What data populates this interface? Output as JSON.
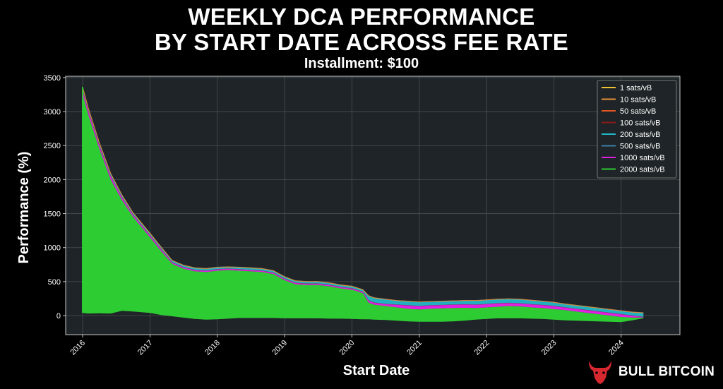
{
  "brand": {
    "name": "BULL BITCOIN",
    "logo_icon": "bull-head-icon",
    "logo_color": "#d7282f"
  },
  "colors": {
    "background": "#000000",
    "plot_background": "#1e2427",
    "grid": "#4a4f52",
    "axis": "#c8c8c8",
    "text": "#ffffff"
  },
  "chart_data": {
    "type": "area",
    "title_lines": [
      "WEEKLY DCA PERFORMANCE",
      "BY START DATE ACROSS FEE RATE"
    ],
    "subtitle": "Installment: $100",
    "xlabel": "Start Date",
    "ylabel": "Performance (%)",
    "xlim": [
      "2015-10-01",
      "2024-11-15"
    ],
    "ylim": [
      -280,
      3520
    ],
    "x_ticks": [
      "2016",
      "2017",
      "2018",
      "2019",
      "2020",
      "2021",
      "2022",
      "2023",
      "2024"
    ],
    "y_ticks": [
      0,
      500,
      1000,
      1500,
      2000,
      2500,
      3000,
      3500
    ],
    "grid": true,
    "legend_position": "top-right",
    "series": [
      {
        "name": "1 sats/vB",
        "color": "#f1c232"
      },
      {
        "name": "10 sats/vB",
        "color": "#e69138"
      },
      {
        "name": "50 sats/vB",
        "color": "#e0541f"
      },
      {
        "name": "100 sats/vB",
        "color": "#8b1a1a"
      },
      {
        "name": "200 sats/vB",
        "color": "#22b8c7"
      },
      {
        "name": "500 sats/vB",
        "color": "#3f7fa6"
      },
      {
        "name": "1000 sats/vB",
        "color": "#e21ee2"
      },
      {
        "name": "2000 sats/vB",
        "color": "#2ecc33"
      }
    ],
    "envelope": {
      "x": [
        "2016-01-01",
        "2016-02-01",
        "2016-04-01",
        "2016-06-01",
        "2016-08-01",
        "2016-10-01",
        "2017-01-01",
        "2017-03-01",
        "2017-05-01",
        "2017-07-01",
        "2017-09-01",
        "2017-11-01",
        "2018-01-01",
        "2018-03-01",
        "2018-05-01",
        "2018-07-01",
        "2018-09-01",
        "2018-11-01",
        "2019-01-01",
        "2019-03-01",
        "2019-05-01",
        "2019-07-01",
        "2019-09-01",
        "2019-11-01",
        "2020-01-01",
        "2020-03-01",
        "2020-04-01",
        "2020-05-01",
        "2020-07-01",
        "2020-09-01",
        "2020-11-01",
        "2021-01-01",
        "2021-03-01",
        "2021-05-01",
        "2021-07-01",
        "2021-09-01",
        "2021-11-01",
        "2022-01-01",
        "2022-03-01",
        "2022-05-01",
        "2022-07-01",
        "2022-09-01",
        "2022-11-01",
        "2023-01-01",
        "2023-03-01",
        "2023-05-01",
        "2023-07-01",
        "2023-09-01",
        "2023-11-01",
        "2024-01-01",
        "2024-03-01",
        "2024-05-01"
      ],
      "top_2000": [
        3250,
        2950,
        2450,
        2000,
        1700,
        1450,
        1150,
        950,
        760,
        690,
        650,
        640,
        660,
        670,
        660,
        650,
        640,
        610,
        520,
        460,
        450,
        450,
        430,
        400,
        380,
        330,
        190,
        160,
        140,
        120,
        100,
        90,
        100,
        105,
        110,
        115,
        110,
        120,
        130,
        140,
        135,
        120,
        110,
        95,
        80,
        60,
        40,
        20,
        0,
        -20,
        -30,
        -30
      ],
      "top_1000": [
        3310,
        3010,
        2500,
        2050,
        1740,
        1480,
        1180,
        980,
        780,
        710,
        670,
        660,
        680,
        690,
        680,
        670,
        660,
        630,
        540,
        480,
        470,
        470,
        450,
        420,
        400,
        350,
        220,
        190,
        170,
        160,
        150,
        140,
        150,
        155,
        160,
        165,
        160,
        170,
        180,
        185,
        180,
        165,
        155,
        140,
        120,
        100,
        80,
        60,
        40,
        20,
        0,
        -20
      ],
      "top_1": [
        3360,
        3050,
        2540,
        2090,
        1775,
        1510,
        1210,
        1010,
        810,
        740,
        700,
        690,
        710,
        715,
        710,
        700,
        690,
        660,
        570,
        510,
        500,
        500,
        480,
        450,
        430,
        380,
        290,
        260,
        240,
        220,
        210,
        200,
        205,
        210,
        215,
        220,
        220,
        230,
        240,
        245,
        240,
        225,
        210,
        195,
        170,
        150,
        130,
        110,
        90,
        70,
        50,
        40
      ],
      "bottom": [
        40,
        30,
        35,
        30,
        70,
        60,
        40,
        10,
        -10,
        -30,
        -50,
        -60,
        -55,
        -45,
        -35,
        -35,
        -35,
        -35,
        -40,
        -40,
        -40,
        -40,
        -45,
        -45,
        -50,
        -55,
        -55,
        -60,
        -65,
        -75,
        -85,
        -90,
        -90,
        -90,
        -85,
        -75,
        -60,
        -50,
        -40,
        -40,
        -40,
        -45,
        -50,
        -60,
        -70,
        -75,
        -80,
        -85,
        -90,
        -95,
        -70,
        -40
      ]
    }
  }
}
